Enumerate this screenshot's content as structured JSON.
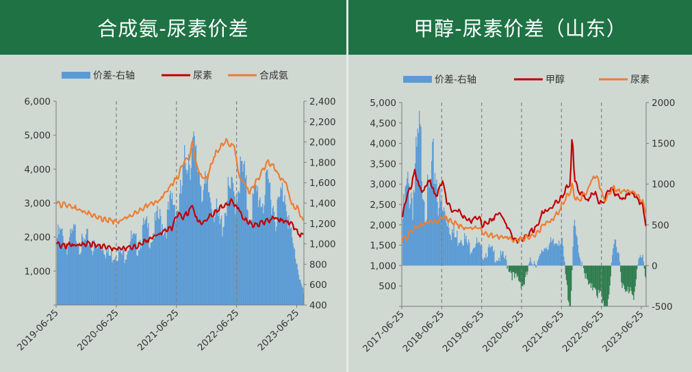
{
  "colors": {
    "header_bg": "#1e7244",
    "spread_pos": "#5b9bd5",
    "spread_neg": "#2e7d4f",
    "urea": "#c00000",
    "ammonia": "#ed7d31",
    "methanol": "#c00000",
    "urea_right": "#ed7d31"
  },
  "chart_data": [
    {
      "type": "bar+line",
      "title": "合成氨-尿素价差",
      "legend": [
        "价差-右轴",
        "尿素",
        "合成氨"
      ],
      "x_ticks": [
        "2019-06-25",
        "2020-06-25",
        "2021-06-25",
        "2022-06-25",
        "2023-06-25"
      ],
      "x_range": [
        2019.48,
        2023.6
      ],
      "y_left": {
        "ticks": [
          "",
          "1,000",
          "2,000",
          "3,000",
          "4,000",
          "5,000",
          "6,000"
        ],
        "range": [
          0,
          6000
        ]
      },
      "y_right": {
        "ticks": [
          "400",
          "600",
          "800",
          "1,000",
          "1,200",
          "1,400",
          "1,600",
          "1,800",
          "2,000",
          "2,200",
          "2,400"
        ],
        "range": [
          400,
          2400
        ]
      },
      "vlines": [
        2020.48,
        2021.48,
        2022.48
      ],
      "series": [
        {
          "name": "价差-右轴",
          "axis": "left",
          "kind": "area",
          "x": [
            2019.48,
            2019.6,
            2019.8,
            2020.0,
            2020.2,
            2020.4,
            2020.48,
            2020.6,
            2020.8,
            2021.0,
            2021.2,
            2021.4,
            2021.5,
            2021.6,
            2021.7,
            2021.75,
            2021.8,
            2021.9,
            2022.0,
            2022.1,
            2022.2,
            2022.3,
            2022.4,
            2022.5,
            2022.6,
            2022.7,
            2022.8,
            2022.9,
            2023.0,
            2023.1,
            2023.2,
            2023.3,
            2023.4,
            2023.5,
            2023.6
          ],
          "values": [
            2100,
            2000,
            2100,
            1900,
            1800,
            1600,
            1500,
            1700,
            2000,
            2300,
            2500,
            3000,
            3200,
            4000,
            4800,
            5200,
            4500,
            3500,
            3800,
            2800,
            2600,
            3000,
            3500,
            3900,
            3800,
            3000,
            3200,
            3600,
            3500,
            3000,
            3300,
            3300,
            2000,
            1000,
            300
          ]
        },
        {
          "name": "尿素",
          "axis": "right",
          "kind": "line",
          "x": [
            2019.48,
            2019.6,
            2019.8,
            2020.0,
            2020.2,
            2020.4,
            2020.5,
            2020.6,
            2020.8,
            2021.0,
            2021.2,
            2021.4,
            2021.5,
            2021.6,
            2021.7,
            2021.75,
            2021.8,
            2021.9,
            2022.0,
            2022.1,
            2022.2,
            2022.3,
            2022.4,
            2022.5,
            2022.6,
            2022.7,
            2022.8,
            2022.9,
            2023.0,
            2023.1,
            2023.2,
            2023.3,
            2023.4,
            2023.5,
            2023.6
          ],
          "values": [
            1000,
            980,
            990,
            1000,
            980,
            960,
            950,
            960,
            970,
            1040,
            1100,
            1150,
            1300,
            1250,
            1330,
            1380,
            1250,
            1200,
            1250,
            1300,
            1350,
            1380,
            1420,
            1360,
            1250,
            1200,
            1180,
            1200,
            1230,
            1250,
            1230,
            1220,
            1200,
            1100,
            1090
          ]
        },
        {
          "name": "合成氨",
          "axis": "right",
          "kind": "line",
          "x": [
            2019.48,
            2019.6,
            2019.8,
            2020.0,
            2020.2,
            2020.4,
            2020.5,
            2020.6,
            2020.8,
            2021.0,
            2021.2,
            2021.4,
            2021.5,
            2021.55,
            2021.6,
            2021.7,
            2021.75,
            2021.8,
            2021.9,
            2022.0,
            2022.1,
            2022.2,
            2022.3,
            2022.4,
            2022.45,
            2022.5,
            2022.6,
            2022.7,
            2022.8,
            2022.9,
            2023.0,
            2023.1,
            2023.2,
            2023.3,
            2023.4,
            2023.5,
            2023.6
          ],
          "values": [
            1400,
            1380,
            1350,
            1300,
            1250,
            1230,
            1220,
            1240,
            1300,
            1380,
            1420,
            1580,
            1650,
            1720,
            1800,
            1850,
            2000,
            1800,
            1650,
            1660,
            1850,
            1950,
            2010,
            1960,
            1980,
            1700,
            1600,
            1500,
            1600,
            1700,
            1800,
            1750,
            1650,
            1600,
            1380,
            1350,
            1200
          ]
        }
      ]
    },
    {
      "type": "bar+line",
      "title": "甲醇-尿素价差（山东）",
      "legend": [
        "价差-右轴",
        "甲醇",
        "尿素"
      ],
      "x_ticks": [
        "2017-06-25",
        "2018-06-25",
        "2019-06-25",
        "2020-06-25",
        "2021-06-25",
        "2022-06-25",
        "2023-06-25"
      ],
      "x_range": [
        2017.48,
        2023.6
      ],
      "y_left": {
        "ticks": [
          "",
          "500",
          "1,000",
          "1,500",
          "2,000",
          "2,500",
          "3,000",
          "3,500",
          "4,000",
          "4,500",
          "5,000"
        ],
        "range": [
          0,
          5000
        ]
      },
      "y_right": {
        "ticks": [
          "-500",
          "0",
          "500",
          "1000",
          "1500",
          "2000"
        ],
        "range": [
          -500,
          2000
        ]
      },
      "vlines": [
        2018.48,
        2019.48,
        2020.48,
        2021.48,
        2022.48
      ],
      "series": [
        {
          "name": "价差-右轴",
          "axis": "right",
          "kind": "area",
          "x": [
            2017.48,
            2017.6,
            2017.7,
            2017.8,
            2017.9,
            2018.0,
            2018.1,
            2018.2,
            2018.3,
            2018.4,
            2018.5,
            2018.6,
            2018.7,
            2018.8,
            2018.9,
            2019.0,
            2019.2,
            2019.4,
            2019.5,
            2019.7,
            2019.9,
            2020.0,
            2020.2,
            2020.3,
            2020.5,
            2020.7,
            2020.9,
            2021.0,
            2021.2,
            2021.4,
            2021.5,
            2021.6,
            2021.7,
            2021.75,
            2021.8,
            2021.9,
            2022.0,
            2022.1,
            2022.2,
            2022.3,
            2022.4,
            2022.5,
            2022.6,
            2022.7,
            2022.8,
            2022.9,
            2023.0,
            2023.1,
            2023.2,
            2023.3,
            2023.4,
            2023.5,
            2023.6
          ],
          "values": [
            600,
            900,
            1100,
            1300,
            1500,
            1200,
            1000,
            1100,
            1200,
            1000,
            800,
            600,
            500,
            450,
            400,
            350,
            300,
            250,
            200,
            180,
            150,
            100,
            0,
            -150,
            -200,
            50,
            100,
            200,
            300,
            350,
            250,
            -200,
            -450,
            200,
            500,
            150,
            100,
            -200,
            -300,
            -150,
            -350,
            -500,
            -450,
            -100,
            300,
            200,
            -200,
            -350,
            -250,
            -300,
            100,
            150,
            -200
          ]
        },
        {
          "name": "甲醇",
          "axis": "left",
          "kind": "line",
          "x": [
            2017.48,
            2017.6,
            2017.7,
            2017.8,
            2017.9,
            2018.0,
            2018.1,
            2018.2,
            2018.3,
            2018.4,
            2018.5,
            2018.6,
            2018.7,
            2018.8,
            2018.9,
            2019.0,
            2019.2,
            2019.4,
            2019.5,
            2019.7,
            2019.9,
            2020.0,
            2020.2,
            2020.3,
            2020.5,
            2020.7,
            2020.9,
            2021.0,
            2021.2,
            2021.4,
            2021.5,
            2021.6,
            2021.7,
            2021.75,
            2021.8,
            2021.9,
            2022.0,
            2022.1,
            2022.2,
            2022.3,
            2022.4,
            2022.5,
            2022.6,
            2022.7,
            2022.8,
            2022.9,
            2023.0,
            2023.1,
            2023.2,
            2023.3,
            2023.4,
            2023.5,
            2023.6
          ],
          "values": [
            2100,
            2700,
            2900,
            3300,
            3000,
            2800,
            3000,
            3100,
            2700,
            2800,
            3100,
            2600,
            2400,
            2300,
            2400,
            2200,
            2100,
            2200,
            2000,
            2100,
            2300,
            2200,
            1800,
            1600,
            1650,
            1800,
            2000,
            2300,
            2400,
            2600,
            2700,
            2900,
            3000,
            4300,
            3200,
            2800,
            2800,
            2600,
            2700,
            2800,
            2600,
            2500,
            2700,
            2900,
            2800,
            2700,
            2600,
            2700,
            2800,
            2750,
            2600,
            2500,
            2000
          ]
        },
        {
          "name": "尿素",
          "axis": "left",
          "kind": "line",
          "x": [
            2017.48,
            2017.6,
            2017.7,
            2017.8,
            2017.9,
            2018.0,
            2018.1,
            2018.2,
            2018.3,
            2018.4,
            2018.5,
            2018.6,
            2018.7,
            2018.8,
            2018.9,
            2019.0,
            2019.2,
            2019.4,
            2019.5,
            2019.7,
            2019.9,
            2020.0,
            2020.2,
            2020.3,
            2020.5,
            2020.7,
            2020.9,
            2021.0,
            2021.2,
            2021.4,
            2021.5,
            2021.6,
            2021.7,
            2021.75,
            2021.8,
            2021.9,
            2022.0,
            2022.1,
            2022.2,
            2022.3,
            2022.4,
            2022.5,
            2022.6,
            2022.7,
            2022.8,
            2022.9,
            2023.0,
            2023.1,
            2023.2,
            2023.3,
            2023.4,
            2023.5,
            2023.6
          ],
          "values": [
            1600,
            1700,
            1800,
            1900,
            1950,
            2000,
            2050,
            2100,
            2050,
            2100,
            2200,
            2150,
            2100,
            2050,
            2000,
            1950,
            1900,
            1950,
            1800,
            1750,
            1700,
            1700,
            1650,
            1600,
            1650,
            1700,
            1800,
            2000,
            2100,
            2300,
            2500,
            2700,
            2800,
            3000,
            2700,
            2600,
            2700,
            2800,
            3000,
            3200,
            3100,
            2700,
            2600,
            2800,
            2900,
            2800,
            2800,
            2850,
            2800,
            2800,
            2700,
            2600,
            2300
          ]
        }
      ]
    }
  ]
}
